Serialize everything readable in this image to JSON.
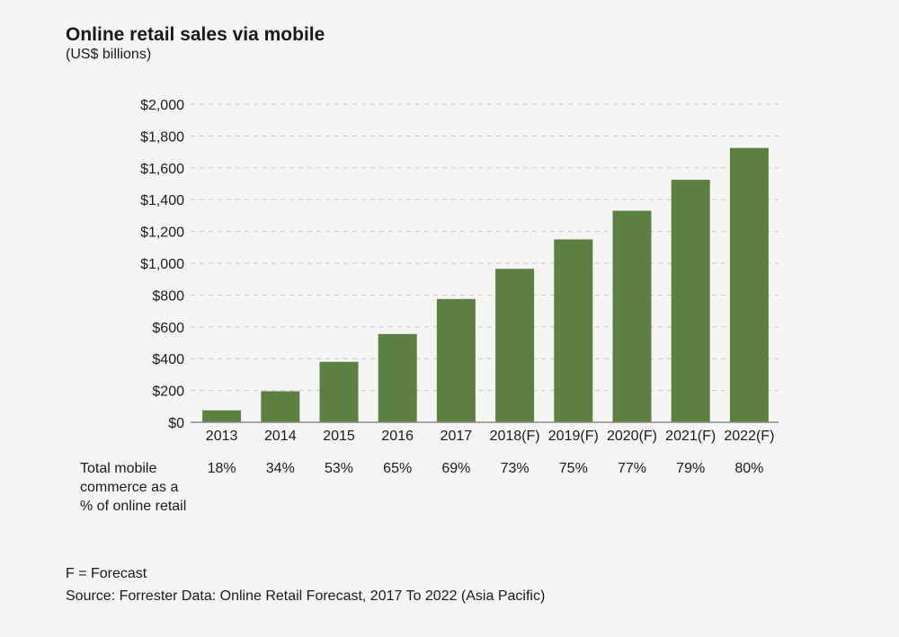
{
  "title": "Online retail sales via mobile",
  "subtitle": "(US$ billions)",
  "chart_data": {
    "type": "bar",
    "title": "Online retail sales via mobile",
    "ylabel": "US$ billions",
    "xlabel": "",
    "categories": [
      "2013",
      "2014",
      "2015",
      "2016",
      "2017",
      "2018(F)",
      "2019(F)",
      "2020(F)",
      "2021(F)",
      "2022(F)"
    ],
    "values": [
      75,
      195,
      380,
      555,
      775,
      965,
      1150,
      1330,
      1525,
      1725
    ],
    "ylim": [
      0,
      2000
    ],
    "yticks": [
      0,
      200,
      400,
      600,
      800,
      1000,
      1200,
      1400,
      1600,
      1800,
      2000
    ],
    "ytick_labels": [
      "$0",
      "$200",
      "$400",
      "$600",
      "$800",
      "$1,000",
      "$1,200",
      "$1,400",
      "$1,600",
      "$1,800",
      "$2,000"
    ],
    "grid": "dashed horizontal",
    "bar_color": "#5b8040",
    "mobile_share_label": "Total mobile commerce as a % of online retail",
    "mobile_share": [
      "18%",
      "34%",
      "53%",
      "65%",
      "69%",
      "73%",
      "75%",
      "77%",
      "79%",
      "80%"
    ]
  },
  "footnotes": {
    "forecast_note": "F = Forecast",
    "source": "Source: Forrester Data: Online Retail Forecast, 2017 To 2022 (Asia Pacific)"
  },
  "colors": {
    "background": "#f5f5f4",
    "bar": "#5b8040",
    "grid": "#c8c8c8",
    "axis": "#8a8a8a",
    "text": "#1a1a1a"
  }
}
